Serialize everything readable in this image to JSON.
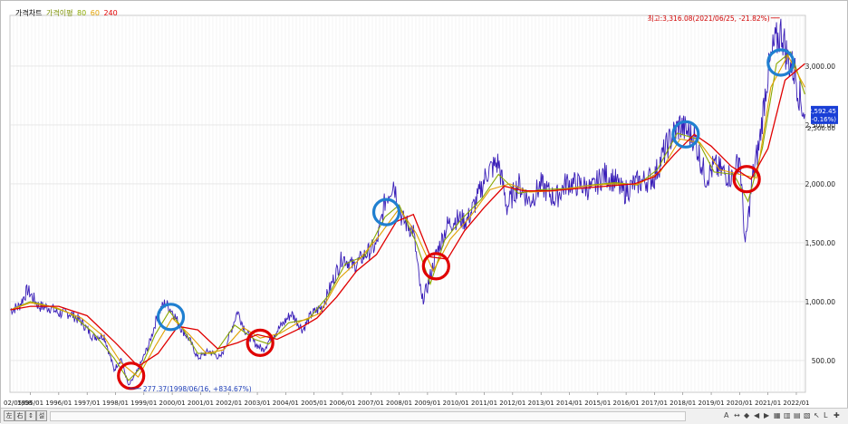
{
  "legend": {
    "chart_label": "가격차트",
    "ma_label": "가격이평",
    "ma_periods": [
      "80",
      "60",
      "240"
    ],
    "ma_colors": [
      "#8aa800",
      "#e0a000",
      "#e00000"
    ]
  },
  "toolbar": {
    "left_buttons": [
      "左",
      "右",
      "↕",
      "설"
    ],
    "right_icons": [
      "A",
      "↔",
      "◆",
      "◀",
      "▶",
      "▦",
      "▥",
      "▤",
      "▧",
      "↖",
      "L",
      "✚"
    ]
  },
  "chart_data": {
    "type": "line",
    "first_date_label": "02/05/08",
    "x_tick_labels": [
      "1995/01",
      "1996/01",
      "1997/01",
      "1998/01",
      "1999/01",
      "2000/01",
      "2001/01",
      "2002/01",
      "2003/01",
      "2004/01",
      "2005/01",
      "2006/01",
      "2007/01",
      "2008/01",
      "2009/01",
      "2010/01",
      "2011/01",
      "2012/01",
      "2013/01",
      "2014/01",
      "2015/01",
      "2016/01",
      "2017/01",
      "2018/01",
      "2019/01",
      "2020/01",
      "2021/01",
      "2022/01"
    ],
    "y_tick_labels": [
      "500.00",
      "1,000.00",
      "1,500.00",
      "2,000.00",
      "2,500.00",
      "3,000.00"
    ],
    "ylim": [
      230,
      3430
    ],
    "xlim": [
      1994.28,
      2022.32
    ],
    "grid": "vertical",
    "price_series_color": "#3a1fb8",
    "series": [
      {
        "values": [
          [
            1994.3,
            930
          ],
          [
            1994.6,
            960
          ],
          [
            1994.9,
            1100
          ],
          [
            1995.3,
            960
          ],
          [
            1995.7,
            950
          ],
          [
            1996.0,
            900
          ],
          [
            1996.4,
            900
          ],
          [
            1996.8,
            830
          ],
          [
            1997.2,
            700
          ],
          [
            1997.6,
            710
          ],
          [
            1997.95,
            420
          ],
          [
            1998.2,
            520
          ],
          [
            1998.46,
            280
          ],
          [
            1998.8,
            420
          ],
          [
            1999.2,
            650
          ],
          [
            1999.5,
            900
          ],
          [
            1999.75,
            990
          ],
          [
            2000.0,
            920
          ],
          [
            2000.3,
            780
          ],
          [
            2000.6,
            680
          ],
          [
            2000.9,
            520
          ],
          [
            2001.3,
            580
          ],
          [
            2001.7,
            520
          ],
          [
            2002.0,
            700
          ],
          [
            2002.3,
            920
          ],
          [
            2002.6,
            740
          ],
          [
            2002.9,
            650
          ],
          [
            2003.2,
            590
          ],
          [
            2003.5,
            700
          ],
          [
            2003.9,
            810
          ],
          [
            2004.2,
            900
          ],
          [
            2004.6,
            760
          ],
          [
            2004.9,
            890
          ],
          [
            2005.3,
            960
          ],
          [
            2005.7,
            1200
          ],
          [
            2006.0,
            1380
          ],
          [
            2006.4,
            1300
          ],
          [
            2006.8,
            1400
          ],
          [
            2007.2,
            1480
          ],
          [
            2007.5,
            1850
          ],
          [
            2007.8,
            2020
          ],
          [
            2008.1,
            1700
          ],
          [
            2008.5,
            1600
          ],
          [
            2008.8,
            1000
          ],
          [
            2009.0,
            1130
          ],
          [
            2009.3,
            1400
          ],
          [
            2009.7,
            1650
          ],
          [
            2010.0,
            1700
          ],
          [
            2010.4,
            1690
          ],
          [
            2010.8,
            1900
          ],
          [
            2011.1,
            2100
          ],
          [
            2011.5,
            2180
          ],
          [
            2011.8,
            1800
          ],
          [
            2012.2,
            2000
          ],
          [
            2012.6,
            1850
          ],
          [
            2013.0,
            1990
          ],
          [
            2013.5,
            1870
          ],
          [
            2013.9,
            2010
          ],
          [
            2014.4,
            1990
          ],
          [
            2014.8,
            1950
          ],
          [
            2015.2,
            2080
          ],
          [
            2015.6,
            2030
          ],
          [
            2015.9,
            1920
          ],
          [
            2016.3,
            2000
          ],
          [
            2016.7,
            2030
          ],
          [
            2017.0,
            2060
          ],
          [
            2017.3,
            2250
          ],
          [
            2017.6,
            2400
          ],
          [
            2017.9,
            2500
          ],
          [
            2018.1,
            2450
          ],
          [
            2018.4,
            2400
          ],
          [
            2018.8,
            2050
          ],
          [
            2019.1,
            2150
          ],
          [
            2019.4,
            2100
          ],
          [
            2019.8,
            2050
          ],
          [
            2020.0,
            2250
          ],
          [
            2020.2,
            1460
          ],
          [
            2020.45,
            2050
          ],
          [
            2020.7,
            2350
          ],
          [
            2020.95,
            2870
          ],
          [
            2021.2,
            3150
          ],
          [
            2021.48,
            3300
          ],
          [
            2021.7,
            3050
          ],
          [
            2021.95,
            2950
          ],
          [
            2022.15,
            2700
          ],
          [
            2022.3,
            2592
          ]
        ]
      },
      {
        "values": [
          [
            1994.3,
            930
          ],
          [
            1995.0,
            1000
          ],
          [
            1995.7,
            960
          ],
          [
            1996.4,
            900
          ],
          [
            1997.2,
            740
          ],
          [
            1997.95,
            520
          ],
          [
            1998.46,
            330
          ],
          [
            1998.9,
            440
          ],
          [
            1999.4,
            720
          ],
          [
            1999.9,
            920
          ],
          [
            2000.4,
            760
          ],
          [
            2000.9,
            560
          ],
          [
            2001.5,
            560
          ],
          [
            2002.2,
            800
          ],
          [
            2002.9,
            680
          ],
          [
            2003.4,
            640
          ],
          [
            2004.1,
            820
          ],
          [
            2004.8,
            850
          ],
          [
            2005.5,
            1050
          ],
          [
            2006.1,
            1320
          ],
          [
            2006.8,
            1390
          ],
          [
            2007.5,
            1720
          ],
          [
            2008.0,
            1820
          ],
          [
            2008.6,
            1500
          ],
          [
            2009.1,
            1150
          ],
          [
            2009.6,
            1520
          ],
          [
            2010.2,
            1700
          ],
          [
            2010.9,
            1870
          ],
          [
            2011.5,
            2080
          ],
          [
            2012.2,
            1920
          ],
          [
            2013.0,
            1950
          ],
          [
            2013.9,
            1960
          ],
          [
            2014.8,
            1990
          ],
          [
            2015.6,
            2010
          ],
          [
            2016.4,
            1990
          ],
          [
            2017.1,
            2120
          ],
          [
            2017.8,
            2430
          ],
          [
            2018.5,
            2380
          ],
          [
            2019.1,
            2100
          ],
          [
            2019.8,
            2080
          ],
          [
            2020.3,
            1850
          ],
          [
            2020.8,
            2300
          ],
          [
            2021.3,
            3020
          ],
          [
            2021.8,
            3120
          ],
          [
            2022.3,
            2760
          ]
        ]
      },
      {
        "values": [
          [
            1994.3,
            930
          ],
          [
            1995.0,
            990
          ],
          [
            1995.9,
            950
          ],
          [
            1996.8,
            860
          ],
          [
            1997.6,
            700
          ],
          [
            1998.2,
            480
          ],
          [
            1998.8,
            360
          ],
          [
            1999.4,
            620
          ],
          [
            2000.0,
            860
          ],
          [
            2000.6,
            720
          ],
          [
            2001.2,
            560
          ],
          [
            2001.8,
            590
          ],
          [
            2002.5,
            780
          ],
          [
            2003.1,
            690
          ],
          [
            2003.8,
            730
          ],
          [
            2004.5,
            830
          ],
          [
            2005.2,
            900
          ],
          [
            2005.9,
            1200
          ],
          [
            2006.6,
            1360
          ],
          [
            2007.3,
            1560
          ],
          [
            2008.0,
            1790
          ],
          [
            2008.6,
            1580
          ],
          [
            2009.2,
            1260
          ],
          [
            2009.8,
            1530
          ],
          [
            2010.5,
            1720
          ],
          [
            2011.2,
            1950
          ],
          [
            2011.9,
            2000
          ],
          [
            2012.6,
            1930
          ],
          [
            2013.5,
            1940
          ],
          [
            2014.5,
            1980
          ],
          [
            2015.5,
            2000
          ],
          [
            2016.4,
            1995
          ],
          [
            2017.2,
            2100
          ],
          [
            2017.9,
            2380
          ],
          [
            2018.6,
            2350
          ],
          [
            2019.3,
            2120
          ],
          [
            2020.0,
            2080
          ],
          [
            2020.6,
            2050
          ],
          [
            2021.1,
            2820
          ],
          [
            2021.7,
            3090
          ],
          [
            2022.3,
            2820
          ]
        ]
      },
      {
        "name": "240",
        "values": [
          [
            1994.3,
            930
          ],
          [
            1995.0,
            960
          ],
          [
            1996.0,
            960
          ],
          [
            1997.0,
            880
          ],
          [
            1998.0,
            650
          ],
          [
            1998.8,
            450
          ],
          [
            1999.5,
            560
          ],
          [
            2000.2,
            790
          ],
          [
            2000.9,
            760
          ],
          [
            2001.6,
            600
          ],
          [
            2002.3,
            650
          ],
          [
            2003.0,
            720
          ],
          [
            2003.7,
            680
          ],
          [
            2004.4,
            760
          ],
          [
            2005.1,
            860
          ],
          [
            2005.8,
            1040
          ],
          [
            2006.5,
            1260
          ],
          [
            2007.2,
            1400
          ],
          [
            2007.9,
            1680
          ],
          [
            2008.5,
            1740
          ],
          [
            2009.1,
            1380
          ],
          [
            2009.7,
            1360
          ],
          [
            2010.3,
            1600
          ],
          [
            2011.0,
            1800
          ],
          [
            2011.7,
            1980
          ],
          [
            2012.4,
            1940
          ],
          [
            2013.3,
            1940
          ],
          [
            2014.3,
            1960
          ],
          [
            2015.3,
            1980
          ],
          [
            2016.3,
            2000
          ],
          [
            2017.0,
            2060
          ],
          [
            2017.7,
            2250
          ],
          [
            2018.4,
            2420
          ],
          [
            2019.0,
            2320
          ],
          [
            2019.7,
            2150
          ],
          [
            2020.4,
            2040
          ],
          [
            2021.0,
            2300
          ],
          [
            2021.6,
            2880
          ],
          [
            2022.3,
            3020
          ]
        ]
      }
    ],
    "annotations": {
      "max_label": "최고:3,316.08(2021/06/25, -21.82%)",
      "min_label": "277.37(1998/06/16, +834.67%)",
      "current_price": "2,592.45",
      "current_change": "(-0.16%)",
      "partial_tick_label": "2,500.00",
      "max_point": [
        2021.48,
        3316.08
      ],
      "min_point": [
        1998.46,
        277.37
      ],
      "current_value": 2592.45
    },
    "markers": [
      {
        "type": "circle",
        "color": "#e00000",
        "x": 1998.55,
        "y": 370
      },
      {
        "type": "circle",
        "color": "#1f7fd0",
        "x": 1999.95,
        "y": 870
      },
      {
        "type": "circle",
        "color": "#e00000",
        "x": 2003.1,
        "y": 650
      },
      {
        "type": "circle",
        "color": "#1f7fd0",
        "x": 2007.55,
        "y": 1760
      },
      {
        "type": "circle",
        "color": "#e00000",
        "x": 2009.3,
        "y": 1300
      },
      {
        "type": "circle",
        "color": "#1f7fd0",
        "x": 2018.1,
        "y": 2420
      },
      {
        "type": "circle",
        "color": "#e00000",
        "x": 2020.25,
        "y": 2040
      },
      {
        "type": "circle",
        "color": "#1f7fd0",
        "x": 2021.45,
        "y": 3030
      }
    ]
  }
}
